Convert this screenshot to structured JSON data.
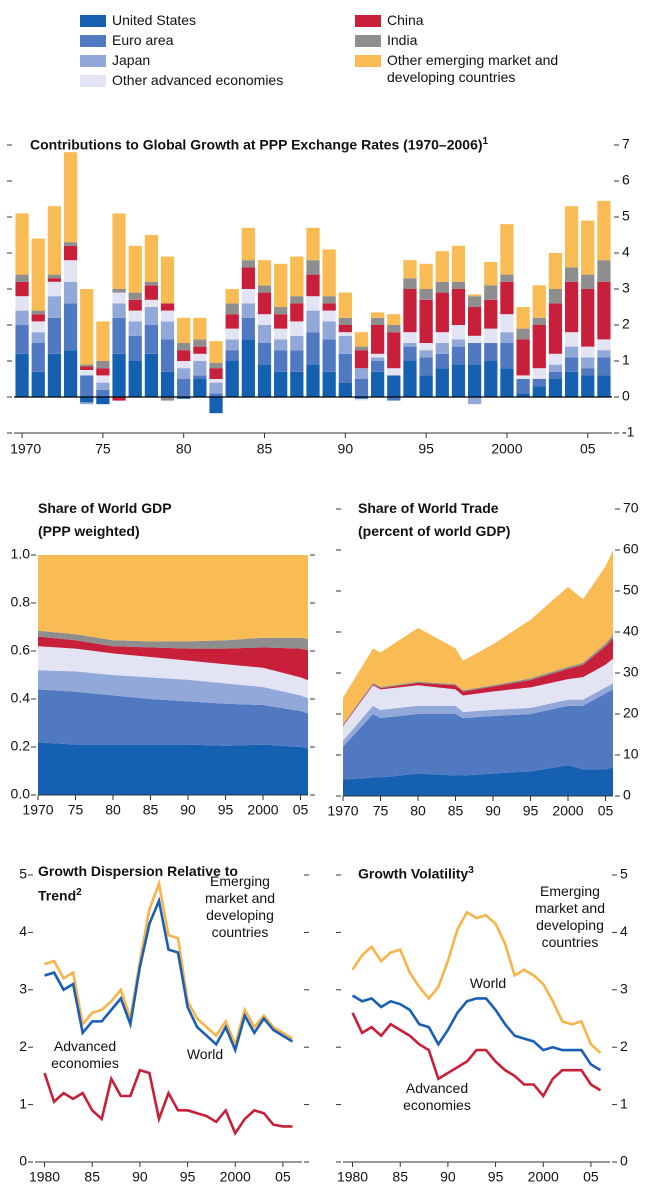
{
  "chart_data": [
    {
      "type": "bar",
      "stacked": true,
      "title": "Contributions to Global Growth at PPP Exchange Rates (1970–2006)",
      "title_note": "1",
      "categories": [
        "1970",
        null,
        null,
        null,
        null,
        "75",
        null,
        null,
        null,
        null,
        "80",
        null,
        null,
        null,
        null,
        "85",
        null,
        null,
        null,
        null,
        "90",
        null,
        null,
        null,
        null,
        "95",
        null,
        null,
        null,
        null,
        "2000",
        null,
        null,
        null,
        null,
        "05",
        null
      ],
      "series": [
        {
          "name": "United States",
          "color": "#1560b0",
          "values": [
            1.2,
            0.7,
            1.2,
            1.3,
            -0.15,
            -0.2,
            1.2,
            1.0,
            1.2,
            0.7,
            -0.05,
            0.5,
            -0.45,
            1.0,
            1.6,
            0.9,
            0.7,
            0.7,
            0.9,
            0.7,
            0.4,
            -0.05,
            0.7,
            0.6,
            1.0,
            0.6,
            0.8,
            0.9,
            0.9,
            1.0,
            0.8,
            0.1,
            0.3,
            0.5,
            0.7,
            0.6,
            0.6
          ]
        },
        {
          "name": "Euro area",
          "color": "#5079c2",
          "values": [
            0.8,
            0.8,
            1.0,
            1.3,
            0.6,
            0.2,
            1.0,
            0.7,
            0.8,
            0.9,
            0.5,
            0.1,
            0.1,
            0.3,
            0.6,
            0.6,
            0.6,
            0.6,
            0.9,
            0.9,
            0.8,
            0.5,
            0.3,
            -0.1,
            0.4,
            0.5,
            0.4,
            0.5,
            0.6,
            0.5,
            0.7,
            0.4,
            0.2,
            0.2,
            0.4,
            0.2,
            0.5
          ]
        },
        {
          "name": "Japan",
          "color": "#92a8d8",
          "values": [
            0.4,
            0.3,
            0.6,
            0.6,
            -0.05,
            0.2,
            0.4,
            0.4,
            0.5,
            0.5,
            0.3,
            0.4,
            0.3,
            0.3,
            0.4,
            0.5,
            0.3,
            0.4,
            0.6,
            0.5,
            0.5,
            0.3,
            0.1,
            0.0,
            0.1,
            0.2,
            0.3,
            0.2,
            -0.2,
            0.0,
            0.3,
            0.0,
            0.0,
            0.2,
            0.3,
            0.3,
            0.2
          ]
        },
        {
          "name": "Other advanced economies",
          "color": "#e2e4f3",
          "values": [
            0.4,
            0.3,
            0.4,
            0.6,
            0.15,
            0.2,
            0.3,
            0.3,
            0.2,
            0.3,
            0.2,
            0.2,
            0.1,
            0.3,
            0.4,
            0.3,
            0.3,
            0.4,
            0.4,
            0.3,
            0.1,
            -0.05,
            0.1,
            0.2,
            0.3,
            0.2,
            0.3,
            0.4,
            0.2,
            0.4,
            0.5,
            0.1,
            0.3,
            0.3,
            0.4,
            0.3,
            0.3
          ]
        },
        {
          "name": "China",
          "color": "#c8203a",
          "values": [
            0.4,
            0.2,
            0.1,
            0.4,
            0.1,
            0.2,
            -0.1,
            0.3,
            0.4,
            0.2,
            0.3,
            0.2,
            0.3,
            0.4,
            0.6,
            0.6,
            0.4,
            0.5,
            0.6,
            0.2,
            0.2,
            0.5,
            0.8,
            1.0,
            1.2,
            1.2,
            1.1,
            1.0,
            0.8,
            0.8,
            0.9,
            1.0,
            1.2,
            1.4,
            1.4,
            1.6,
            1.6
          ]
        },
        {
          "name": "India",
          "color": "#8e8e8e",
          "values": [
            0.2,
            0.1,
            0.1,
            0.1,
            0.05,
            0.2,
            0.1,
            0.2,
            0.1,
            -0.1,
            0.2,
            0.2,
            0.15,
            0.3,
            0.2,
            0.2,
            0.2,
            0.2,
            0.4,
            0.2,
            0.2,
            0.1,
            0.2,
            0.2,
            0.3,
            0.3,
            0.3,
            0.2,
            0.3,
            0.4,
            0.2,
            0.3,
            0.2,
            0.4,
            0.4,
            0.4,
            0.6
          ]
        },
        {
          "name": "Other emerging market and developing countries",
          "color": "#f9bb53",
          "values": [
            1.7,
            2.0,
            1.9,
            2.5,
            2.1,
            1.1,
            2.1,
            1.3,
            1.3,
            1.3,
            0.7,
            0.6,
            0.6,
            0.4,
            0.9,
            0.7,
            1.2,
            1.1,
            0.9,
            1.3,
            0.7,
            0.4,
            0.15,
            0.3,
            0.5,
            0.7,
            0.85,
            1.0,
            0.05,
            0.65,
            1.4,
            0.6,
            0.9,
            1.0,
            1.7,
            1.5,
            1.65
          ]
        }
      ],
      "ylim": [
        -1,
        7
      ],
      "yticks": [
        -1,
        0,
        1,
        2,
        3,
        4,
        5,
        6,
        7
      ],
      "y_axis_side": "right"
    },
    {
      "type": "area",
      "stacked": true,
      "title": "Share of World GDP",
      "subtitle": "(PPP weighted)",
      "x": [
        1970,
        1975,
        1980,
        1985,
        1990,
        1995,
        2000,
        2005,
        2006
      ],
      "series": [
        {
          "color": "#1560b0",
          "values": [
            0.22,
            0.21,
            0.21,
            0.21,
            0.21,
            0.205,
            0.21,
            0.2,
            0.195
          ]
        },
        {
          "color": "#5079c2",
          "values": [
            0.22,
            0.22,
            0.205,
            0.19,
            0.18,
            0.175,
            0.165,
            0.15,
            0.145
          ]
        },
        {
          "color": "#92a8d8",
          "values": [
            0.08,
            0.085,
            0.085,
            0.09,
            0.09,
            0.085,
            0.075,
            0.065,
            0.063
          ]
        },
        {
          "color": "#e2e4f3",
          "values": [
            0.1,
            0.095,
            0.09,
            0.085,
            0.08,
            0.08,
            0.08,
            0.075,
            0.075
          ]
        },
        {
          "color": "#c8203a",
          "values": [
            0.04,
            0.035,
            0.03,
            0.04,
            0.05,
            0.065,
            0.085,
            0.12,
            0.125
          ]
        },
        {
          "color": "#8e8e8e",
          "values": [
            0.025,
            0.025,
            0.025,
            0.025,
            0.03,
            0.035,
            0.04,
            0.045,
            0.047
          ]
        },
        {
          "color": "#f9bb53",
          "values": [
            0.315,
            0.33,
            0.355,
            0.36,
            0.36,
            0.355,
            0.345,
            0.345,
            0.35
          ]
        }
      ],
      "xlim": [
        1970,
        2006
      ],
      "xticks": [
        1970,
        {
          "value": 1975,
          "label": "75"
        },
        {
          "value": 1980,
          "label": "80"
        },
        {
          "value": 1985,
          "label": "85"
        },
        {
          "value": 1990,
          "label": "90"
        },
        {
          "value": 1995,
          "label": "95"
        },
        2000,
        {
          "value": 2005,
          "label": "05"
        }
      ],
      "ylim": [
        0,
        1
      ],
      "yticks": [
        {
          "value": 0,
          "label": "0.0"
        },
        0.2,
        0.4,
        0.6,
        0.8,
        {
          "value": 1,
          "label": "1.0"
        }
      ],
      "y_axis_side": "left"
    },
    {
      "type": "area",
      "stacked": true,
      "title": "Share of World Trade",
      "subtitle": "(percent of world GDP)",
      "x": [
        1970,
        1974,
        1975,
        1980,
        1985,
        1986,
        1990,
        1995,
        2000,
        2002,
        2005,
        2006
      ],
      "series": [
        {
          "color": "#1560b0",
          "values": [
            4,
            4.5,
            4.5,
            5.5,
            5,
            5,
            5.5,
            6,
            7.5,
            6.5,
            6.5,
            7
          ]
        },
        {
          "color": "#5079c2",
          "values": [
            8,
            15.5,
            14.5,
            14.5,
            15,
            14,
            14,
            14,
            14.5,
            15.5,
            18.5,
            19
          ]
        },
        {
          "color": "#92a8d8",
          "values": [
            1.5,
            2,
            2,
            2,
            2,
            1.5,
            1.5,
            1.5,
            1.5,
            1.5,
            1.5,
            1.5
          ]
        },
        {
          "color": "#e2e4f3",
          "values": [
            3.5,
            5,
            5,
            5,
            4,
            4,
            4.5,
            5,
            5,
            5.5,
            5.5,
            6
          ]
        },
        {
          "color": "#c8203a",
          "values": [
            0.2,
            0.3,
            0.3,
            0.6,
            1,
            1,
            1.2,
            1.8,
            2.5,
            3,
            4.5,
            5
          ]
        },
        {
          "color": "#8e8e8e",
          "values": [
            0.3,
            0.3,
            0.3,
            0.3,
            0.3,
            0.3,
            0.3,
            0.4,
            0.5,
            0.5,
            0.7,
            0.8
          ]
        },
        {
          "color": "#f9bb53",
          "values": [
            6.5,
            8.4,
            8.4,
            13.1,
            8.7,
            7.2,
            10,
            14.3,
            19.5,
            15.5,
            18.8,
            20.7
          ]
        }
      ],
      "xlim": [
        1970,
        2006
      ],
      "xticks": [
        1970,
        {
          "value": 1975,
          "label": "75"
        },
        {
          "value": 1980,
          "label": "80"
        },
        {
          "value": 1985,
          "label": "85"
        },
        {
          "value": 1990,
          "label": "90"
        },
        {
          "value": 1995,
          "label": "95"
        },
        2000,
        {
          "value": 2005,
          "label": "05"
        }
      ],
      "ylim": [
        0,
        70
      ],
      "yticks": [
        0,
        10,
        20,
        30,
        40,
        50,
        60,
        70
      ],
      "y_axis_side": "right"
    },
    {
      "type": "line",
      "title": "Growth Dispersion Relative to Trend",
      "title_note": "2",
      "x": [
        1980,
        1981,
        1982,
        1983,
        1984,
        1985,
        1986,
        1987,
        1988,
        1989,
        1990,
        1991,
        1992,
        1993,
        1994,
        1995,
        1996,
        1997,
        1998,
        1999,
        2000,
        2001,
        2002,
        2003,
        2004,
        2005,
        2006
      ],
      "series": [
        {
          "name": "Emerging market and developing countries",
          "color": "#f6b44a",
          "values": [
            3.45,
            3.5,
            3.2,
            3.3,
            2.4,
            2.6,
            2.65,
            2.8,
            3.0,
            2.5,
            3.5,
            4.4,
            4.85,
            3.95,
            3.9,
            2.8,
            2.5,
            2.35,
            2.2,
            2.45,
            2.05,
            2.65,
            2.35,
            2.55,
            2.35,
            2.25,
            2.15
          ]
        },
        {
          "name": "World",
          "color": "#1a5fb4",
          "values": [
            3.25,
            3.3,
            3.0,
            3.1,
            2.25,
            2.45,
            2.45,
            2.65,
            2.85,
            2.4,
            3.4,
            4.15,
            4.55,
            3.7,
            3.65,
            2.7,
            2.35,
            2.2,
            2.05,
            2.35,
            1.95,
            2.55,
            2.25,
            2.5,
            2.3,
            2.2,
            2.1
          ]
        },
        {
          "name": "Advanced economies",
          "color": "#c8203a",
          "values": [
            1.55,
            1.05,
            1.2,
            1.1,
            1.2,
            0.9,
            0.75,
            1.45,
            1.15,
            1.15,
            1.6,
            1.55,
            0.75,
            1.2,
            0.9,
            0.9,
            0.85,
            0.8,
            0.7,
            0.9,
            0.5,
            0.75,
            0.9,
            0.85,
            0.65,
            0.62,
            0.62
          ]
        }
      ],
      "xlim": [
        1979,
        2007
      ],
      "xticks": [
        1980,
        {
          "value": 1985,
          "label": "85"
        },
        {
          "value": 1990,
          "label": "90"
        },
        {
          "value": 1995,
          "label": "95"
        },
        2000,
        {
          "value": 2005,
          "label": "05"
        }
      ],
      "ylim": [
        0,
        5
      ],
      "yticks": [
        0,
        1,
        2,
        3,
        4,
        5
      ],
      "y_axis_side": "left"
    },
    {
      "type": "line",
      "title": "Growth Volatility",
      "title_note": "3",
      "x": [
        1980,
        1981,
        1982,
        1983,
        1984,
        1985,
        1986,
        1987,
        1988,
        1989,
        1990,
        1991,
        1992,
        1993,
        1994,
        1995,
        1996,
        1997,
        1998,
        1999,
        2000,
        2001,
        2002,
        2003,
        2004,
        2005,
        2006
      ],
      "series": [
        {
          "name": "Emerging market and developing countries",
          "color": "#f6b44a",
          "values": [
            3.35,
            3.6,
            3.75,
            3.5,
            3.65,
            3.7,
            3.3,
            3.05,
            2.85,
            3.05,
            3.5,
            4.05,
            4.35,
            4.25,
            4.3,
            4.15,
            3.8,
            3.25,
            3.35,
            3.25,
            3.1,
            2.8,
            2.45,
            2.4,
            2.45,
            2.05,
            1.9
          ]
        },
        {
          "name": "World",
          "color": "#1a5fb4",
          "values": [
            2.9,
            2.8,
            2.85,
            2.7,
            2.8,
            2.75,
            2.65,
            2.4,
            2.35,
            2.05,
            2.3,
            2.6,
            2.8,
            2.85,
            2.85,
            2.65,
            2.4,
            2.2,
            2.15,
            2.1,
            1.95,
            2.0,
            1.95,
            1.95,
            1.95,
            1.7,
            1.6
          ]
        },
        {
          "name": "Advanced economies",
          "color": "#c8203a",
          "values": [
            2.6,
            2.25,
            2.35,
            2.2,
            2.4,
            2.3,
            2.2,
            2.05,
            1.95,
            1.45,
            1.55,
            1.65,
            1.75,
            1.95,
            1.95,
            1.75,
            1.6,
            1.5,
            1.35,
            1.35,
            1.15,
            1.45,
            1.6,
            1.6,
            1.6,
            1.35,
            1.25
          ]
        }
      ],
      "xlim": [
        1979,
        2007
      ],
      "xticks": [
        1980,
        {
          "value": 1985,
          "label": "85"
        },
        {
          "value": 1990,
          "label": "90"
        },
        {
          "value": 1995,
          "label": "95"
        },
        2000,
        {
          "value": 2005,
          "label": "05"
        }
      ],
      "ylim": [
        0,
        5
      ],
      "yticks": [
        0,
        1,
        2,
        3,
        4,
        5
      ],
      "y_axis_side": "right"
    }
  ]
}
